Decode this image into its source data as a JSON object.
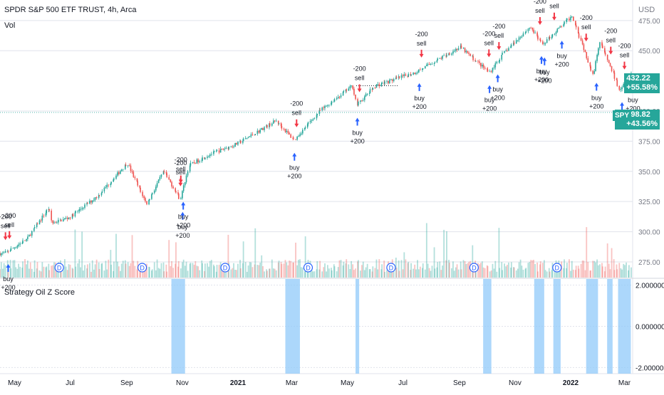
{
  "header": {
    "symbol_title": "SPDR S&P 500 ETF TRUST, 4h, Arca",
    "volume_label": "Vol",
    "indicator_title": "Strategy Oil Z Score"
  },
  "price_axis": {
    "currency": "USD",
    "ticks": [
      "475.00",
      "450.00",
      "400.00",
      "375.00",
      "350.00",
      "325.00",
      "300.00",
      "275.00"
    ]
  },
  "indicator_axis": {
    "ticks": [
      "2.000000",
      "0.000000",
      "-2.000000"
    ]
  },
  "time_axis": {
    "labels": [
      "May",
      "Jul",
      "Sep",
      "Nov",
      "2021",
      "Mar",
      "May",
      "Jul",
      "Sep",
      "Nov",
      "2022",
      "Mar"
    ]
  },
  "price_tags": {
    "last": {
      "price": "432.22",
      "change": "+55.58%",
      "color": "#26a69a"
    },
    "spy": {
      "symbol": "SPY",
      "price": "398.82",
      "change": "+43.56%",
      "color": "#26a69a"
    }
  },
  "colors": {
    "up": "#26a69a",
    "down": "#ef5350",
    "buy": "#2962ff",
    "sell": "#f23645",
    "zscore": "#90caf9",
    "grid": "#e0e3eb",
    "dividend": "#2962ff"
  },
  "dividend_marker": "D",
  "chart_data": {
    "type": "candlestick",
    "title": "SPDR S&P 500 ETF TRUST, 4h, Arca",
    "ylabel": "USD",
    "ylim": [
      262,
      492
    ],
    "x_range": [
      "2020-04",
      "2022-03"
    ],
    "price_path": [
      [
        "2020-04-20",
        282
      ],
      [
        "2020-05-01",
        287
      ],
      [
        "2020-05-15",
        294
      ],
      [
        "2020-06-08",
        320
      ],
      [
        "2020-06-11",
        307
      ],
      [
        "2020-07-01",
        312
      ],
      [
        "2020-08-01",
        330
      ],
      [
        "2020-09-02",
        357
      ],
      [
        "2020-09-23",
        323
      ],
      [
        "2020-10-12",
        350
      ],
      [
        "2020-10-30",
        327
      ],
      [
        "2020-11-09",
        355
      ],
      [
        "2020-12-01",
        364
      ],
      [
        "2021-01-01",
        373
      ],
      [
        "2021-02-12",
        392
      ],
      [
        "2021-03-04",
        376
      ],
      [
        "2021-04-01",
        400
      ],
      [
        "2021-05-07",
        421
      ],
      [
        "2021-05-12",
        405
      ],
      [
        "2021-06-01",
        421
      ],
      [
        "2021-07-15",
        432
      ],
      [
        "2021-09-02",
        453
      ],
      [
        "2021-10-04",
        432
      ],
      [
        "2021-10-20",
        448
      ],
      [
        "2021-11-18",
        470
      ],
      [
        "2021-12-01",
        455
      ],
      [
        "2022-01-03",
        479
      ],
      [
        "2022-01-26",
        430
      ],
      [
        "2022-02-02",
        458
      ],
      [
        "2022-02-24",
        418
      ],
      [
        "2022-03-08",
        432
      ]
    ],
    "trades": [
      {
        "date": "2020-04-21",
        "action": "sell",
        "qty": -200
      },
      {
        "date": "2020-04-23",
        "action": "sell",
        "qty": -200
      },
      {
        "date": "2020-04-24",
        "action": "buy",
        "qty": 200
      },
      {
        "date": "2020-10-28",
        "action": "sell",
        "qty": -200
      },
      {
        "date": "2020-10-30",
        "action": "sell",
        "qty": -200
      },
      {
        "date": "2020-10-30",
        "action": "buy",
        "qty": 200
      },
      {
        "date": "2020-11-02",
        "action": "buy",
        "qty": 200
      },
      {
        "date": "2021-03-04",
        "action": "sell",
        "qty": -200
      },
      {
        "date": "2021-03-04",
        "action": "buy",
        "qty": 200
      },
      {
        "date": "2021-05-12",
        "action": "sell",
        "qty": -200
      },
      {
        "date": "2021-05-12",
        "action": "buy",
        "qty": 200
      },
      {
        "date": "2021-07-19",
        "action": "sell",
        "qty": -200
      },
      {
        "date": "2021-07-19",
        "action": "buy",
        "qty": 200
      },
      {
        "date": "2021-10-01",
        "action": "sell",
        "qty": -200
      },
      {
        "date": "2021-10-04",
        "action": "buy",
        "qty": 200
      },
      {
        "date": "2021-10-12",
        "action": "sell",
        "qty": -200
      },
      {
        "date": "2021-10-13",
        "action": "buy",
        "qty": 200
      },
      {
        "date": "2021-11-26",
        "action": "sell",
        "qty": -200
      },
      {
        "date": "2021-11-30",
        "action": "buy",
        "qty": 200
      },
      {
        "date": "2021-12-01",
        "action": "buy",
        "qty": 200
      },
      {
        "date": "2021-12-14",
        "action": "sell",
        "qty": -200
      },
      {
        "date": "2021-12-20",
        "action": "buy",
        "qty": 200
      },
      {
        "date": "2022-01-18",
        "action": "sell",
        "qty": -200
      },
      {
        "date": "2022-01-27",
        "action": "buy",
        "qty": 200
      },
      {
        "date": "2022-02-14",
        "action": "sell",
        "qty": -200
      },
      {
        "date": "2022-02-24",
        "action": "buy",
        "qty": 200
      },
      {
        "date": "2022-03-01",
        "action": "sell",
        "qty": -200
      },
      {
        "date": "2022-03-08",
        "action": "buy",
        "qty": 200
      }
    ],
    "dividend_dates": [
      "2020-06-19",
      "2020-09-18",
      "2020-12-18",
      "2021-03-19",
      "2021-06-18",
      "2021-09-17",
      "2021-12-17"
    ],
    "zscore_axis": {
      "ylim": [
        -2.3,
        2.3
      ],
      "ticks": [
        2,
        0,
        -2
      ]
    },
    "zscore_bands": [
      [
        "2020-10-20",
        "2020-11-04"
      ],
      [
        "2021-02-22",
        "2021-03-10"
      ],
      [
        "2021-05-10",
        "2021-05-14"
      ],
      [
        "2021-09-27",
        "2021-10-06"
      ],
      [
        "2021-11-22",
        "2021-12-03"
      ],
      [
        "2021-12-13",
        "2021-12-21"
      ],
      [
        "2022-01-18",
        "2022-01-31"
      ],
      [
        "2022-02-10",
        "2022-02-16"
      ],
      [
        "2022-02-22",
        "2022-03-08"
      ]
    ],
    "reference_prices": {
      "last": 432.22,
      "spy": 398.82
    }
  }
}
